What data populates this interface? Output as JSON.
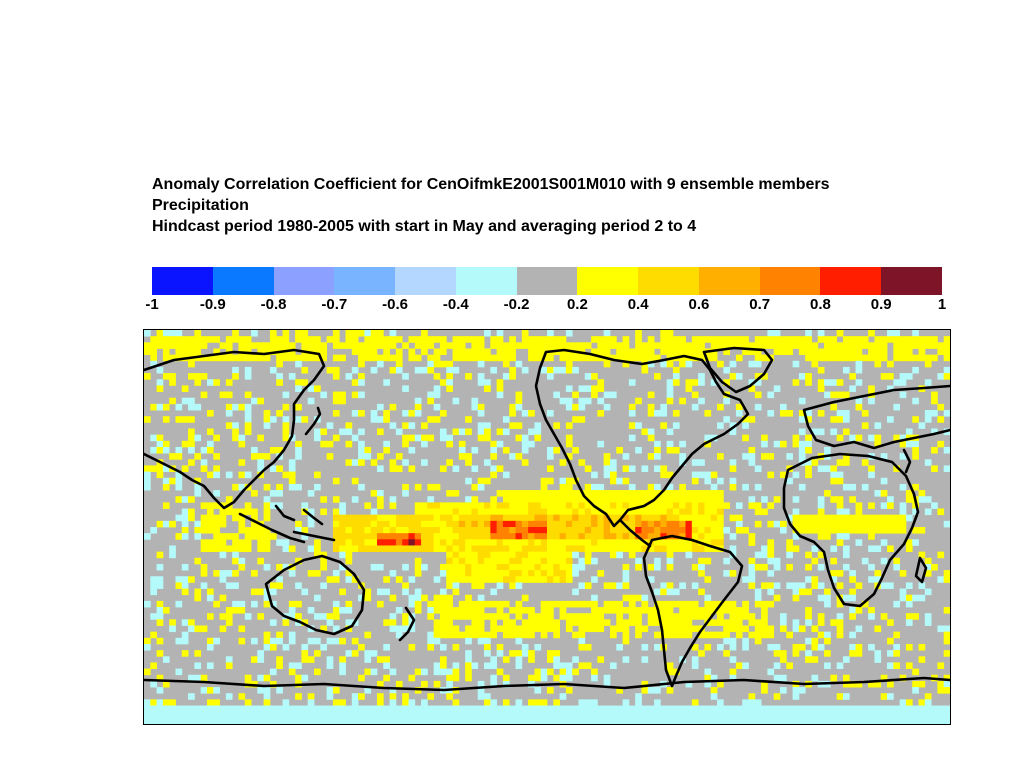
{
  "title": {
    "line1": "Anomaly Correlation Coefficient for CenOifmkE2001S001M010 with  9 ensemble members",
    "line2": "Precipitation",
    "line3": "Hindcast period 1980-2005 with start in May and averaging period 2 to 4"
  },
  "colorbar": {
    "bins": [
      {
        "from": -1.0,
        "to": -0.9,
        "color": "#0a14ff"
      },
      {
        "from": -0.9,
        "to": -0.8,
        "color": "#0a78ff"
      },
      {
        "from": -0.8,
        "to": -0.7,
        "color": "#8ca0ff"
      },
      {
        "from": -0.7,
        "to": -0.6,
        "color": "#78b4ff"
      },
      {
        "from": -0.6,
        "to": -0.4,
        "color": "#b4d7ff"
      },
      {
        "from": -0.4,
        "to": -0.2,
        "color": "#b4fafa"
      },
      {
        "from": -0.2,
        "to": 0.2,
        "color": "#b3b3b3"
      },
      {
        "from": 0.2,
        "to": 0.4,
        "color": "#ffff00"
      },
      {
        "from": 0.4,
        "to": 0.6,
        "color": "#ffdc00"
      },
      {
        "from": 0.6,
        "to": 0.7,
        "color": "#ffaf00"
      },
      {
        "from": 0.7,
        "to": 0.8,
        "color": "#ff8200"
      },
      {
        "from": 0.8,
        "to": 0.9,
        "color": "#ff1e00"
      },
      {
        "from": 0.9,
        "to": 1.0,
        "color": "#7d1428"
      }
    ],
    "tick_labels": [
      "-1",
      "-0.9",
      "-0.8",
      "-0.7",
      "-0.6",
      "-0.4",
      "-0.2",
      "0.2",
      "0.4",
      "0.6",
      "0.7",
      "0.8",
      "0.9",
      "1"
    ]
  },
  "map": {
    "projection": "equirectangular",
    "lon_range": [
      20,
      380
    ],
    "lat_range": [
      -90,
      90
    ],
    "background_color": "#b3b3b3",
    "coastline_color": "#000000",
    "regions": [
      {
        "name": "equatorial-pacific-band",
        "lon": [
          140,
          280
        ],
        "lat": [
          -10,
          12
        ],
        "value": 0.35
      },
      {
        "name": "central-pacific-core",
        "lon": [
          160,
          260
        ],
        "lat": [
          -6,
          6
        ],
        "value": 0.55
      },
      {
        "name": "pacific-max-west",
        "lon": [
          175,
          200
        ],
        "lat": [
          -5,
          3
        ],
        "value": 0.78
      },
      {
        "name": "pacific-max-east",
        "lon": [
          240,
          265
        ],
        "lat": [
          -5,
          2
        ],
        "value": 0.75
      },
      {
        "name": "maritime-continent",
        "lon": [
          105,
          150
        ],
        "lat": [
          -12,
          5
        ],
        "value": 0.45
      },
      {
        "name": "maritime-max",
        "lon": [
          125,
          145
        ],
        "lat": [
          -8,
          -2
        ],
        "value": 0.82
      },
      {
        "name": "south-pacific-convergence",
        "lon": [
          155,
          210
        ],
        "lat": [
          -25,
          -8
        ],
        "value": 0.35
      },
      {
        "name": "north-pacific-itcz",
        "lon": [
          180,
          280
        ],
        "lat": [
          8,
          18
        ],
        "value": 0.3
      },
      {
        "name": "atlantic-itcz",
        "lon": [
          310,
          360
        ],
        "lat": [
          -3,
          6
        ],
        "value": 0.3
      },
      {
        "name": "southern-ocean-belt",
        "lon": [
          150,
          300
        ],
        "lat": [
          -50,
          -35
        ],
        "value": 0.25
      },
      {
        "name": "arctic-band",
        "lon": [
          20,
          380
        ],
        "lat": [
          75,
          88
        ],
        "value": 0.25
      },
      {
        "name": "indian-ocean-west",
        "lon": [
          45,
          75
        ],
        "lat": [
          -10,
          10
        ],
        "value": 0.25
      },
      {
        "name": "antarctic-coast",
        "lon": [
          20,
          380
        ],
        "lat": [
          -90,
          -82
        ],
        "value": -0.3
      }
    ]
  }
}
